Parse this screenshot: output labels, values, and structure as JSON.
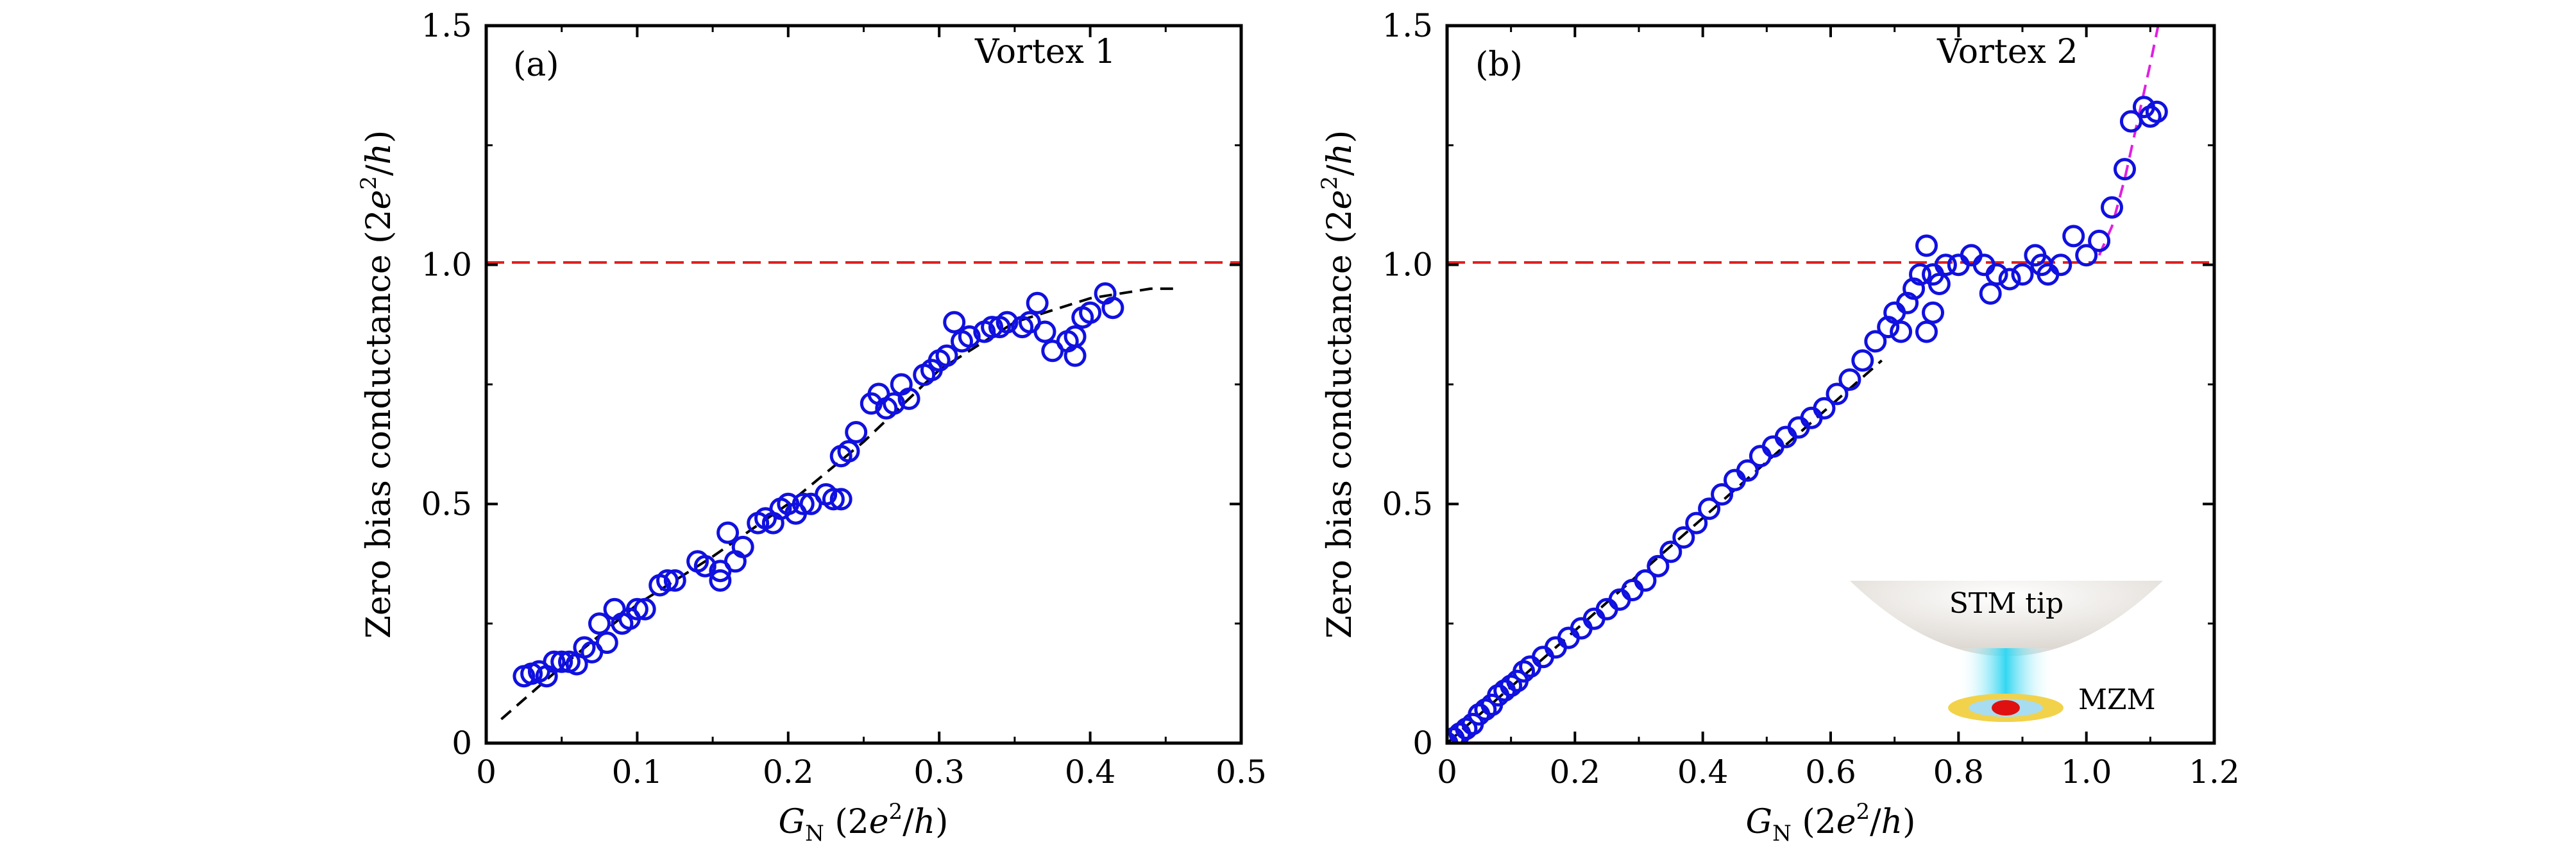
{
  "chart_data": [
    {
      "type": "scatter",
      "panel_label": "(a)",
      "title": "Vortex 1",
      "xlabel": {
        "symbol": "G",
        "subscript": "N",
        "paren_open": " (2",
        "base": "e",
        "exp": "2",
        "slash": "/",
        "h": "h",
        "paren_close": ")"
      },
      "ylabel": {
        "prefix": "Zero bias conductance (2",
        "base": "e",
        "exp": "2",
        "slash": "/",
        "h": "h",
        "paren_close": ")"
      },
      "xlim": [
        0,
        0.5
      ],
      "ylim": [
        0,
        1.5
      ],
      "xticks": [
        0,
        0.1,
        0.2,
        0.3,
        0.4,
        0.5
      ],
      "xtick_labels": [
        "0",
        "0.1",
        "0.2",
        "0.3",
        "0.4",
        "0.5"
      ],
      "yticks": [
        0,
        0.5,
        1.0,
        1.5
      ],
      "ytick_labels": [
        "0",
        "0.5",
        "1.0",
        "1.5"
      ],
      "grid": false,
      "reference_line": {
        "y": 1.0,
        "style": "dashed",
        "color": "#e0201f"
      },
      "fit_curve": {
        "style": "dashed",
        "color": "#000000",
        "x": [
          0.01,
          0.05,
          0.1,
          0.15,
          0.2,
          0.25,
          0.3,
          0.35,
          0.4,
          0.44,
          0.46
        ],
        "y": [
          0.05,
          0.16,
          0.29,
          0.39,
          0.5,
          0.63,
          0.78,
          0.88,
          0.93,
          0.95,
          0.95
        ]
      },
      "series": [
        {
          "marker": "open-circle",
          "color": "#1010e0",
          "x": [
            0.025,
            0.03,
            0.035,
            0.04,
            0.045,
            0.05,
            0.055,
            0.06,
            0.065,
            0.07,
            0.075,
            0.08,
            0.085,
            0.09,
            0.095,
            0.1,
            0.105,
            0.115,
            0.12,
            0.125,
            0.14,
            0.145,
            0.155,
            0.155,
            0.16,
            0.165,
            0.17,
            0.18,
            0.185,
            0.19,
            0.195,
            0.2,
            0.205,
            0.21,
            0.215,
            0.225,
            0.23,
            0.235,
            0.235,
            0.24,
            0.245,
            0.255,
            0.26,
            0.265,
            0.27,
            0.275,
            0.28,
            0.29,
            0.295,
            0.3,
            0.305,
            0.31,
            0.315,
            0.32,
            0.33,
            0.335,
            0.34,
            0.345,
            0.355,
            0.36,
            0.365,
            0.37,
            0.375,
            0.385,
            0.39,
            0.39,
            0.395,
            0.4,
            0.41,
            0.415
          ],
          "y": [
            0.14,
            0.145,
            0.15,
            0.14,
            0.17,
            0.17,
            0.17,
            0.165,
            0.2,
            0.19,
            0.25,
            0.21,
            0.28,
            0.25,
            0.26,
            0.28,
            0.28,
            0.33,
            0.34,
            0.34,
            0.38,
            0.37,
            0.34,
            0.36,
            0.44,
            0.38,
            0.41,
            0.46,
            0.47,
            0.46,
            0.49,
            0.5,
            0.48,
            0.5,
            0.5,
            0.52,
            0.51,
            0.51,
            0.6,
            0.61,
            0.65,
            0.71,
            0.73,
            0.7,
            0.71,
            0.75,
            0.72,
            0.77,
            0.78,
            0.8,
            0.81,
            0.88,
            0.84,
            0.85,
            0.86,
            0.87,
            0.87,
            0.88,
            0.87,
            0.88,
            0.92,
            0.86,
            0.82,
            0.84,
            0.85,
            0.81,
            0.89,
            0.9,
            0.94,
            0.91
          ]
        }
      ]
    },
    {
      "type": "scatter",
      "panel_label": "(b)",
      "title": "Vortex 2",
      "xlabel": {
        "symbol": "G",
        "subscript": "N",
        "paren_open": " (2",
        "base": "e",
        "exp": "2",
        "slash": "/",
        "h": "h",
        "paren_close": ")"
      },
      "ylabel": {
        "prefix": "Zero bias conductance (2",
        "base": "e",
        "exp": "2",
        "slash": "/",
        "h": "h",
        "paren_close": ")"
      },
      "xlim": [
        0,
        1.2
      ],
      "ylim": [
        0,
        1.5
      ],
      "xticks": [
        0,
        0.2,
        0.4,
        0.6,
        0.8,
        1.0,
        1.2
      ],
      "xtick_labels": [
        "0",
        "0.2",
        "0.4",
        "0.6",
        "0.8",
        "1.0",
        "1.2"
      ],
      "yticks": [
        0,
        0.5,
        1.0,
        1.5
      ],
      "ytick_labels": [
        "0",
        "0.5",
        "1.0",
        "1.5"
      ],
      "grid": false,
      "reference_line": {
        "y": 1.0,
        "style": "dashed",
        "color": "#e0201f"
      },
      "fit_curve": {
        "style": "dashed",
        "color": "#000000",
        "x": [
          0.0,
          0.68
        ],
        "y": [
          0.0,
          0.8
        ]
      },
      "fit_curve_2": {
        "style": "dashed",
        "color": "#e020e0",
        "x": [
          1.02,
          1.04,
          1.06,
          1.08,
          1.1,
          1.12
        ],
        "y": [
          1.02,
          1.08,
          1.18,
          1.3,
          1.42,
          1.55
        ]
      },
      "series": [
        {
          "marker": "open-circle",
          "color": "#1010e0",
          "x": [
            0.0,
            0.01,
            0.02,
            0.03,
            0.04,
            0.05,
            0.06,
            0.07,
            0.08,
            0.09,
            0.1,
            0.11,
            0.12,
            0.13,
            0.15,
            0.17,
            0.19,
            0.21,
            0.23,
            0.25,
            0.27,
            0.29,
            0.31,
            0.33,
            0.35,
            0.37,
            0.39,
            0.41,
            0.43,
            0.45,
            0.47,
            0.49,
            0.51,
            0.53,
            0.55,
            0.57,
            0.59,
            0.61,
            0.63,
            0.65,
            0.67,
            0.69,
            0.7,
            0.71,
            0.72,
            0.73,
            0.74,
            0.75,
            0.75,
            0.76,
            0.76,
            0.77,
            0.78,
            0.8,
            0.82,
            0.84,
            0.85,
            0.86,
            0.88,
            0.9,
            0.92,
            0.93,
            0.94,
            0.96,
            0.98,
            1.0,
            1.02,
            1.04,
            1.06,
            1.07,
            1.09,
            1.1,
            1.11
          ],
          "y": [
            0.0,
            0.01,
            0.02,
            0.03,
            0.04,
            0.06,
            0.07,
            0.08,
            0.1,
            0.11,
            0.12,
            0.13,
            0.15,
            0.16,
            0.18,
            0.2,
            0.22,
            0.24,
            0.26,
            0.28,
            0.3,
            0.32,
            0.34,
            0.37,
            0.4,
            0.43,
            0.46,
            0.49,
            0.52,
            0.55,
            0.57,
            0.6,
            0.62,
            0.64,
            0.66,
            0.68,
            0.7,
            0.73,
            0.76,
            0.8,
            0.84,
            0.87,
            0.9,
            0.86,
            0.92,
            0.95,
            0.98,
            1.04,
            0.86,
            0.98,
            0.9,
            0.96,
            1.0,
            1.0,
            1.02,
            1.0,
            0.94,
            0.98,
            0.97,
            0.98,
            1.02,
            1.0,
            0.98,
            1.0,
            1.06,
            1.02,
            1.05,
            1.12,
            1.2,
            1.3,
            1.33,
            1.31,
            1.32
          ]
        }
      ],
      "inset": {
        "tip_label": "STM tip",
        "mode_label": "MZM",
        "colors": {
          "tip": "#d9d3cc",
          "beam": "#33d6f2",
          "ring": "#f2d24a",
          "ring_inner": "#a8dcf0",
          "core": "#e01010"
        }
      }
    }
  ]
}
